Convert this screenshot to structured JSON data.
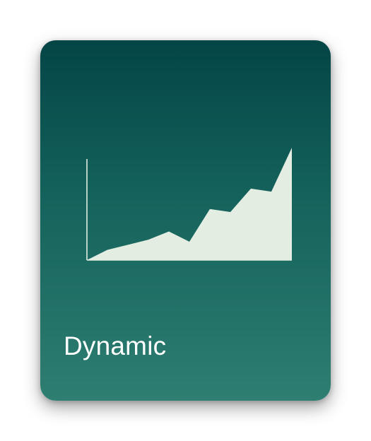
{
  "card": {
    "title": "Dynamic",
    "icon": "area-chart-icon"
  },
  "colors": {
    "card_top": "#044546",
    "card_bottom": "#2e7e72",
    "area_fill": "#e3ede2",
    "axis": "#e3ede2",
    "title_text": "#ffffff"
  },
  "chart_data": {
    "type": "area",
    "x": [
      0,
      1,
      2,
      3,
      4,
      5,
      6,
      7,
      8,
      9,
      10
    ],
    "values": [
      0,
      10,
      15,
      20,
      28,
      18,
      50,
      47,
      70,
      67,
      110
    ],
    "ylim": [
      0,
      110
    ],
    "grid": false,
    "title": "",
    "xlabel": "",
    "ylabel": ""
  }
}
